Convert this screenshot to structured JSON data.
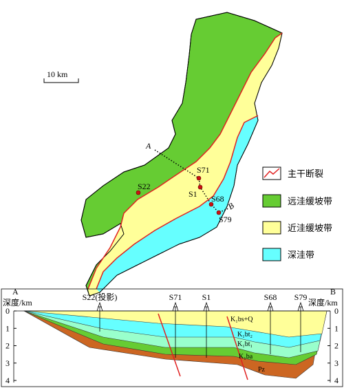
{
  "map": {
    "scale": "10 km",
    "ends": [
      "A",
      "B"
    ],
    "wells": {
      "S22": "S22",
      "S71": "S71",
      "S1": "S1",
      "S68": "S68",
      "S79": "S79"
    }
  },
  "legend": [
    "主干断裂",
    "远洼缓坡带",
    "近洼缓坡带",
    "深洼带"
  ],
  "section": {
    "ends": [
      "A",
      "B"
    ],
    "depth_label": "深度/km",
    "depth_ticks": [
      0,
      1,
      2,
      3,
      4
    ],
    "wells": [
      "S22(投影)",
      "S71",
      "S1",
      "S68",
      "S79"
    ],
    "layers": [
      "K₁bs+Q",
      "K₁bt₂",
      "K₁bt₁",
      "K₁ba",
      "Pz"
    ]
  }
}
